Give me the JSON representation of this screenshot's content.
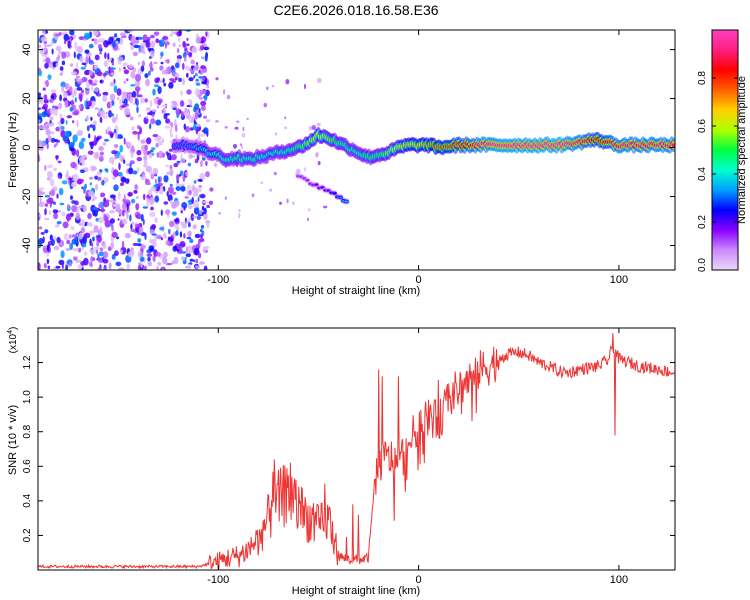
{
  "chart_data": [
    {
      "type": "heatmap",
      "title": "C2E6.2026.018.16.58.E36",
      "xlabel": "Height of straight line (km)",
      "ylabel": "Frequency (Hz)",
      "xlim": [
        -190,
        128
      ],
      "ylim": [
        -50,
        48
      ],
      "x_ticks": [
        -100,
        0,
        100
      ],
      "x_tick_labels": [
        "-100",
        "0",
        "100"
      ],
      "y_ticks": [
        -40,
        -20,
        0,
        20,
        40
      ],
      "y_tick_labels": [
        "-40",
        "-20",
        "0",
        "20",
        "40"
      ],
      "colorbar": {
        "label": "Normalized spectral amplitude",
        "range": [
          0,
          1
        ],
        "ticks": [
          0,
          0.2,
          0.4,
          0.6,
          0.8
        ],
        "tick_labels": [
          "0.0",
          "0.2",
          "0.4",
          "0.6",
          "0.8"
        ],
        "colors": [
          "#e8d8f8",
          "#cc88ff",
          "#8800ff",
          "#0000ff",
          "#00a0ff",
          "#00ffd0",
          "#00ff40",
          "#b0ff00",
          "#ffd000",
          "#ff6000",
          "#ff0000",
          "#ff2080",
          "#ff40c0"
        ]
      },
      "noise_region_x": [
        -190,
        -105
      ],
      "ridge": {
        "x": [
          -122,
          -115,
          -110,
          -105,
          -100,
          -95,
          -90,
          -85,
          -80,
          -75,
          -70,
          -65,
          -60,
          -55,
          -50,
          -45,
          -40,
          -35,
          -30,
          -25,
          -20,
          -15,
          -10,
          -5,
          0,
          5,
          10,
          20,
          30,
          40,
          50,
          60,
          70,
          80,
          85,
          90,
          95,
          100,
          110,
          120,
          128
        ],
        "freq": [
          1,
          1,
          0,
          -2,
          -3,
          -5,
          -4,
          -5,
          -4,
          -3,
          -2,
          -1,
          0,
          2,
          5,
          4,
          2,
          0,
          -2,
          -4,
          -3,
          -2,
          0,
          1,
          1,
          1,
          0,
          1,
          1,
          1,
          1,
          1,
          1,
          2,
          3,
          3,
          2,
          1,
          1,
          1,
          1
        ],
        "amplitude": [
          0.3,
          0.3,
          0.35,
          0.4,
          0.4,
          0.45,
          0.45,
          0.45,
          0.45,
          0.4,
          0.45,
          0.45,
          0.5,
          0.55,
          0.6,
          0.55,
          0.5,
          0.45,
          0.45,
          0.5,
          0.5,
          0.55,
          0.6,
          0.65,
          0.65,
          0.7,
          0.75,
          0.8,
          0.9,
          0.95,
          0.95,
          0.95,
          0.95,
          0.9,
          0.85,
          0.8,
          0.85,
          0.9,
          0.9,
          0.9,
          0.9
        ]
      },
      "side_branch": {
        "x": [
          -60,
          -55,
          -50,
          -45,
          -40,
          -35
        ],
        "freq": [
          -12,
          -14,
          -16,
          -18,
          -20,
          -22
        ],
        "amplitude": [
          0.15,
          0.15,
          0.2,
          0.2,
          0.3,
          0.4
        ]
      }
    },
    {
      "type": "line",
      "title": "",
      "xlabel": "Height of straight line (km)",
      "ylabel": "SNR (10 * v/v)",
      "y_scale_label": "(x10",
      "y_scale_exponent": "4",
      "y_scale_close": ")",
      "xlim": [
        -190,
        128
      ],
      "ylim": [
        0,
        1.4
      ],
      "x_ticks": [
        -100,
        0,
        100
      ],
      "x_tick_labels": [
        "-100",
        "0",
        "100"
      ],
      "y_ticks": [
        0.2,
        0.4,
        0.6,
        0.8,
        1.0,
        1.2
      ],
      "y_tick_labels": [
        "0.2",
        "0.4",
        "0.6",
        "0.8",
        "1.0",
        "1.2"
      ],
      "series": [
        {
          "name": "SNR",
          "color": "#ee3333",
          "x": [
            -190,
            -150,
            -110,
            -100,
            -95,
            -90,
            -85,
            -80,
            -75,
            -70,
            -65,
            -60,
            -55,
            -50,
            -45,
            -40,
            -35,
            -30,
            -25,
            -22,
            -20,
            -15,
            -10,
            -5,
            0,
            5,
            10,
            15,
            20,
            25,
            30,
            35,
            40,
            45,
            50,
            55,
            60,
            65,
            70,
            75,
            80,
            85,
            90,
            95,
            97,
            100,
            105,
            110,
            115,
            120,
            128
          ],
          "values": [
            0.02,
            0.02,
            0.02,
            0.05,
            0.07,
            0.08,
            0.12,
            0.18,
            0.3,
            0.4,
            0.45,
            0.35,
            0.3,
            0.25,
            0.3,
            0.08,
            0.06,
            0.06,
            0.07,
            0.5,
            0.62,
            0.65,
            0.62,
            0.72,
            0.85,
            0.9,
            0.85,
            1.0,
            1.05,
            1.1,
            1.15,
            1.18,
            1.22,
            1.25,
            1.26,
            1.24,
            1.2,
            1.18,
            1.15,
            1.14,
            1.16,
            1.17,
            1.18,
            1.22,
            1.3,
            1.22,
            1.2,
            1.18,
            1.17,
            1.16,
            1.14
          ],
          "spikes": {
            "x": [
              -72,
              -64,
              -47,
              -33,
              -30,
              -20,
              -18,
              -10,
              10,
              97,
              98
            ],
            "values": [
              0.64,
              0.62,
              0.5,
              0.38,
              0.32,
              1.16,
              1.12,
              1.12,
              1.1,
              1.37,
              0.78
            ]
          }
        }
      ]
    }
  ]
}
